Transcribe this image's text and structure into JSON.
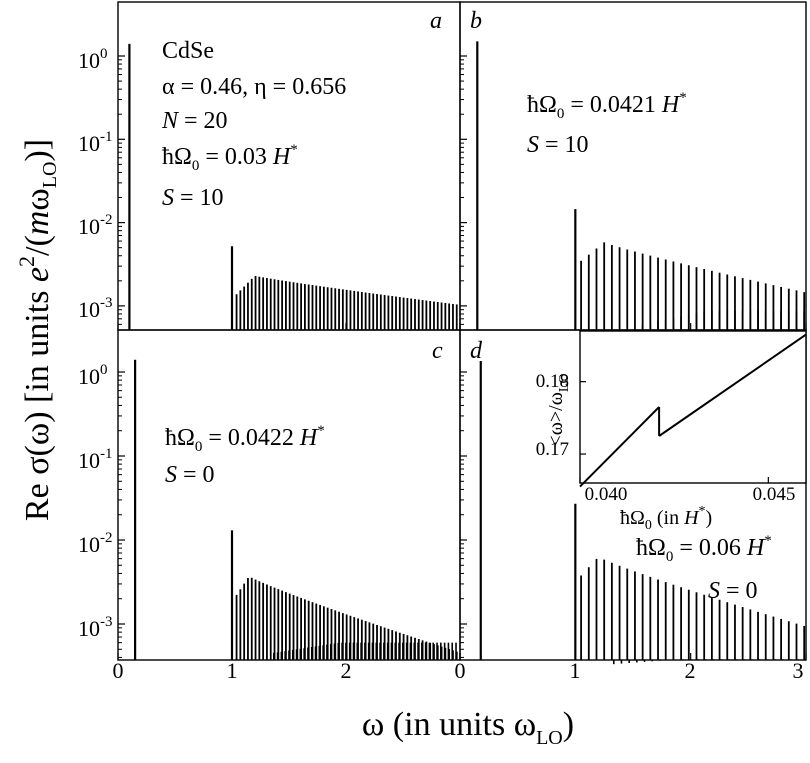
{
  "chart_data": [
    {
      "panel": "a",
      "type": "bar",
      "annotations": [
        "CdSe",
        "α = 0.46, η = 0.656",
        "N = 20",
        "ħΩ0 = 0.03 H*",
        "S = 10"
      ],
      "scale": "log",
      "xlim": [
        0,
        3
      ],
      "ylim": [
        0.0005,
        5
      ],
      "xticks": [
        "0",
        "1",
        "2"
      ],
      "peak": {
        "x": 0.1,
        "y": 1.4
      },
      "edge": {
        "x": 1.0,
        "y": 0.0052
      },
      "comb": {
        "start": 1.04,
        "spacing": 0.0333,
        "peak_x": 1.2,
        "peak_y": 0.0023,
        "end_y": 0.00105,
        "floor": 0.00052
      }
    },
    {
      "panel": "b",
      "type": "bar",
      "annotations": [
        "ħΩ0 = 0.0421 H*",
        "S = 10"
      ],
      "scale": "log",
      "xlim": [
        0,
        3
      ],
      "ylim": [
        0.0005,
        5
      ],
      "peak": {
        "x": 0.15,
        "y": 1.5
      },
      "edge": {
        "x": 1.0,
        "y": 0.0145
      },
      "comb": {
        "start": 1.05,
        "spacing": 0.0667,
        "peak_x": 1.25,
        "peak_y": 0.0058,
        "end_y": 0.0015,
        "floor": 0.00052
      },
      "sub_comb": {
        "start": 1.55,
        "y_start": 0.00058,
        "y_plateau": 0.00088
      }
    },
    {
      "panel": "c",
      "type": "bar",
      "annotations": [
        "ħΩ0 = 0.0422 H*",
        "S = 0"
      ],
      "scale": "log",
      "xlim": [
        0,
        3
      ],
      "ylim": [
        0.0003,
        3
      ],
      "xticks": [
        "0",
        "1",
        "2"
      ],
      "peak": {
        "x": 0.15,
        "y": 1.4
      },
      "edge": {
        "x": 1.0,
        "y": 0.013
      },
      "comb": {
        "start": 1.04,
        "spacing": 0.0333,
        "peak_x": 1.15,
        "peak_y": 0.0037,
        "end_y": 0.00048,
        "floor": 0.0003
      },
      "sub_comb": {
        "start": 1.35,
        "y_start": 0.00045,
        "y_plateau": 0.0006
      }
    },
    {
      "panel": "d",
      "type": "bar",
      "annotations": [
        "ħΩ0 = 0.06 H*",
        "S = 0"
      ],
      "scale": "log",
      "xlim": [
        0,
        3
      ],
      "ylim": [
        0.0003,
        3
      ],
      "xticks": [
        "0",
        "1",
        "2",
        "3"
      ],
      "peak": {
        "x": 0.18,
        "y": 1.35
      },
      "edge": {
        "x": 1.0,
        "y": 0.027
      },
      "comb": {
        "start": 1.05,
        "spacing": 0.0667,
        "peak_x": 1.2,
        "peak_y": 0.0063,
        "end_y": 0.00098,
        "floor": 0.0003
      },
      "sub_comb": {
        "start": 1.3,
        "y_start": 0.00033,
        "y_plateau": 0.00038
      }
    },
    {
      "panel": "inset",
      "type": "line",
      "xlabel": "ħΩ0 (in H*)",
      "ylabel": "<ω>/ωLO",
      "xlim": [
        0.04,
        0.046
      ],
      "ylim": [
        0.166,
        0.187
      ],
      "xticks": [
        0.04,
        0.045
      ],
      "yticks": [
        0.17,
        0.18
      ],
      "xtick_labels": [
        "0.040",
        "0.045"
      ],
      "ytick_labels": [
        "0.17",
        "0.18"
      ],
      "segments": [
        [
          [
            0.04,
            0.1655
          ],
          [
            0.0421,
            0.1765
          ]
        ],
        [
          [
            0.0421,
            0.1725
          ],
          [
            0.046,
            0.1865
          ]
        ]
      ]
    }
  ],
  "axes": {
    "y_ticks_top": [
      "10",
      "10",
      "10",
      "10"
    ],
    "y_ticks_top_exp": [
      "0",
      "-1",
      "-2",
      "-3"
    ],
    "y_ticks_bottom": [
      "10",
      "10",
      "10",
      "10"
    ],
    "y_ticks_bottom_exp": [
      "0",
      "-1",
      "-2",
      "-3"
    ],
    "x_ticks_left": [
      "0",
      "1",
      "2"
    ],
    "x_ticks_right": [
      "0",
      "1",
      "2",
      "3"
    ]
  },
  "texts": {
    "ylabel_main": "Re σ(ω) [in units ",
    "ylabel_e": "e",
    "ylabel_sup": "2",
    "ylabel_mid": "/(",
    "ylabel_m": "m",
    "ylabel_omega": "ω",
    "ylabel_sub": "LO",
    "ylabel_end": ")]",
    "xlabel_main": "ω (in units ω",
    "xlabel_sub": "LO",
    "xlabel_end": ")",
    "panel_a": "a",
    "panel_b": "b",
    "panel_c": "c",
    "panel_d": "d",
    "a_line1": "CdSe",
    "a_line2": "α = 0.46, η = 0.656",
    "a_line3_var": "N",
    "a_line3_val": " = 20",
    "hbar_omega": "ħΩ",
    "sub0": "0",
    "a_omega_val": " = 0.03 ",
    "H": "H",
    "star": "*",
    "S_var": "S",
    "S10": " = 10",
    "S0": " = 0",
    "b_omega_val": " = 0.0421 ",
    "c_omega_val": " = 0.0422 ",
    "d_omega_val": " = 0.06 ",
    "inset_ylabel_a": "<ω>/ω",
    "inset_ylabel_sub": "LO",
    "inset_xlabel_a": "ħΩ",
    "inset_xlabel_b": " (in ",
    "inset_xlabel_c": ")"
  }
}
